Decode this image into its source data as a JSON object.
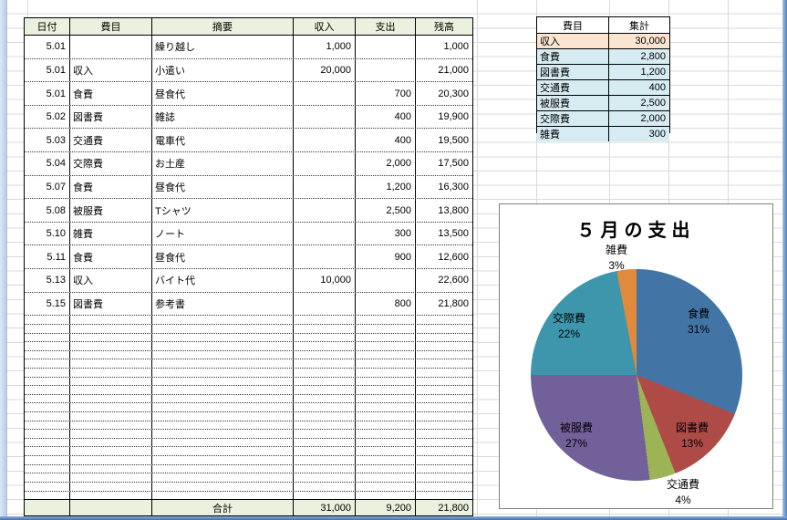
{
  "ledger": {
    "headers": [
      "日付",
      "費目",
      "摘要",
      "収入",
      "支出",
      "残高"
    ],
    "rows": [
      {
        "date": "5.01",
        "category": "",
        "desc": "繰り越し",
        "income": "1,000",
        "expense": "",
        "balance": "1,000"
      },
      {
        "date": "5.01",
        "category": "収入",
        "desc": "小遣い",
        "income": "20,000",
        "expense": "",
        "balance": "21,000"
      },
      {
        "date": "5.01",
        "category": "食費",
        "desc": "昼食代",
        "income": "",
        "expense": "700",
        "balance": "20,300"
      },
      {
        "date": "5.02",
        "category": "図書費",
        "desc": "雑誌",
        "income": "",
        "expense": "400",
        "balance": "19,900"
      },
      {
        "date": "5.03",
        "category": "交通費",
        "desc": "電車代",
        "income": "",
        "expense": "400",
        "balance": "19,500"
      },
      {
        "date": "5.04",
        "category": "交際費",
        "desc": "お土産",
        "income": "",
        "expense": "2,000",
        "balance": "17,500"
      },
      {
        "date": "5.07",
        "category": "食費",
        "desc": "昼食代",
        "income": "",
        "expense": "1,200",
        "balance": "16,300"
      },
      {
        "date": "5.08",
        "category": "被服費",
        "desc": "Tシャツ",
        "income": "",
        "expense": "2,500",
        "balance": "13,800"
      },
      {
        "date": "5.10",
        "category": "雑費",
        "desc": "ノート",
        "income": "",
        "expense": "300",
        "balance": "13,500"
      },
      {
        "date": "5.11",
        "category": "食費",
        "desc": "昼食代",
        "income": "",
        "expense": "900",
        "balance": "12,600"
      },
      {
        "date": "5.13",
        "category": "収入",
        "desc": "バイト代",
        "income": "10,000",
        "expense": "",
        "balance": "22,600"
      },
      {
        "date": "5.15",
        "category": "図書費",
        "desc": "参考書",
        "income": "",
        "expense": "800",
        "balance": "21,800"
      }
    ],
    "empty_row_count": 21,
    "total": {
      "label": "合計",
      "income": "31,000",
      "expense": "9,200",
      "balance": "21,800"
    }
  },
  "summary": {
    "headers": [
      "費目",
      "集計"
    ],
    "rows": [
      {
        "category": "収入",
        "amount": "30,000",
        "row_color": "#fbe5d0"
      },
      {
        "category": "食費",
        "amount": "2,800",
        "row_color": "#d6ebf2"
      },
      {
        "category": "図書費",
        "amount": "1,200",
        "row_color": "#d6ebf2"
      },
      {
        "category": "交通費",
        "amount": "400",
        "row_color": "#d6ebf2"
      },
      {
        "category": "被服費",
        "amount": "2,500",
        "row_color": "#d6ebf2"
      },
      {
        "category": "交際費",
        "amount": "2,000",
        "row_color": "#d6ebf2"
      },
      {
        "category": "雑費",
        "amount": "300",
        "row_color": "#d6ebf2"
      }
    ]
  },
  "chart_data": {
    "type": "pie",
    "title": "５月の支出",
    "labels": [
      "食費",
      "図書費",
      "交通費",
      "被服費",
      "交際費",
      "雑費"
    ],
    "values": [
      31,
      13,
      4,
      27,
      22,
      3
    ],
    "unit": "%",
    "colors": [
      "#4374a6",
      "#ae4b47",
      "#9cb356",
      "#72609a",
      "#3d96ac",
      "#e18a3c"
    ],
    "start_angle_deg": 0,
    "direction": "clockwise",
    "legend_position": "none"
  },
  "theme": {
    "header_fill": "#eaf1de",
    "gridline_color": "#d9d9d9",
    "window_border_blue": "#4d7ec0"
  }
}
